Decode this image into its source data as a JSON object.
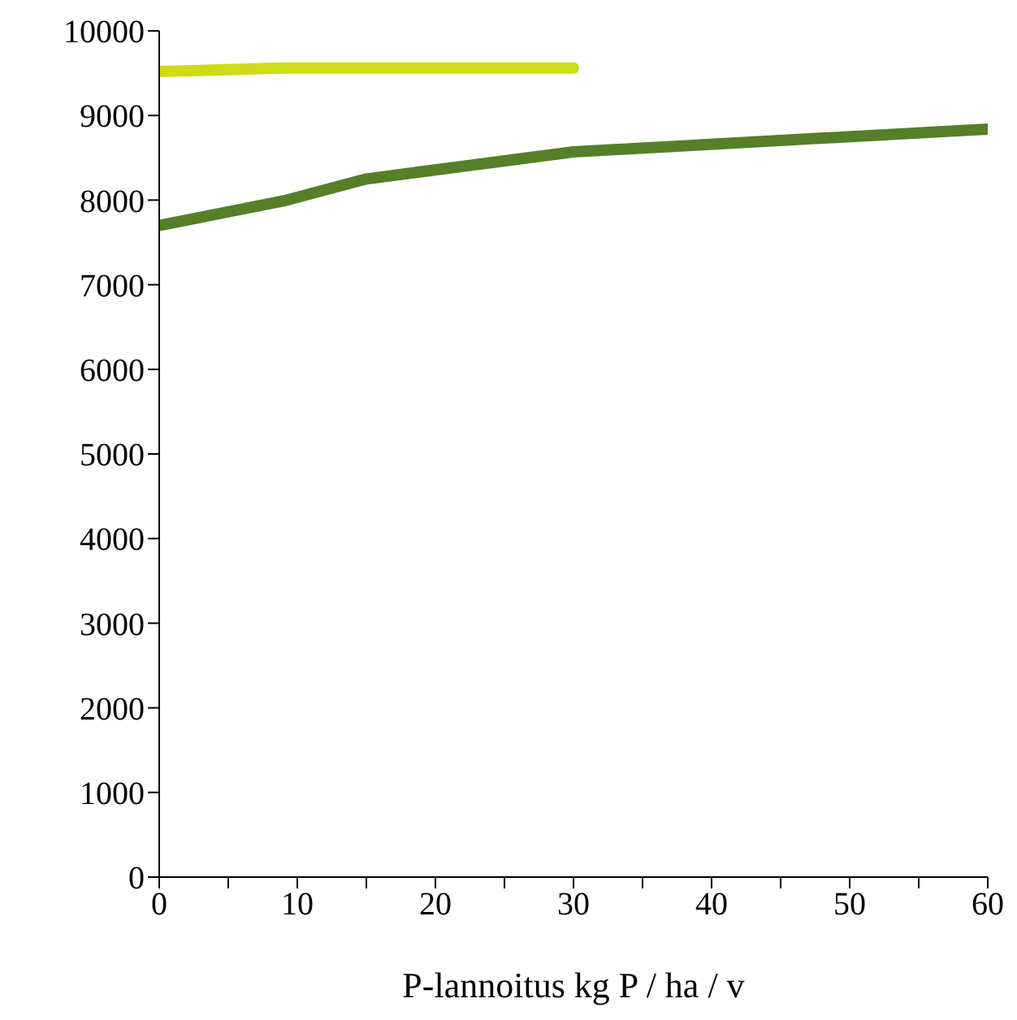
{
  "chart_data": {
    "type": "line",
    "xlabel": "P-lannoitus kg P / ha / v",
    "series": [
      {
        "color": "#cddc14",
        "x": [
          0,
          9,
          30
        ],
        "values": [
          9520,
          9560,
          9560
        ]
      },
      {
        "color": "#567f28",
        "x": [
          0,
          9,
          15,
          30,
          60
        ],
        "values": [
          7700,
          7990,
          8250,
          8570,
          8840
        ]
      }
    ],
    "xlim": [
      0,
      60
    ],
    "xticks": [
      0,
      {
        "value": 5,
        "label": null
      },
      10,
      {
        "value": 15,
        "label": null
      },
      20,
      {
        "value": 25,
        "label": null
      },
      30,
      {
        "value": 35,
        "label": null
      },
      40,
      {
        "value": 45,
        "label": null
      },
      50,
      {
        "value": 55,
        "label": null
      },
      60
    ],
    "ylim": [
      0,
      10000
    ],
    "yticks": [
      0,
      1000,
      2000,
      3000,
      4000,
      5000,
      6000,
      7000,
      8000,
      9000,
      10000
    ],
    "grid": false,
    "legend": false,
    "marker": "none",
    "line_style": "solid"
  }
}
